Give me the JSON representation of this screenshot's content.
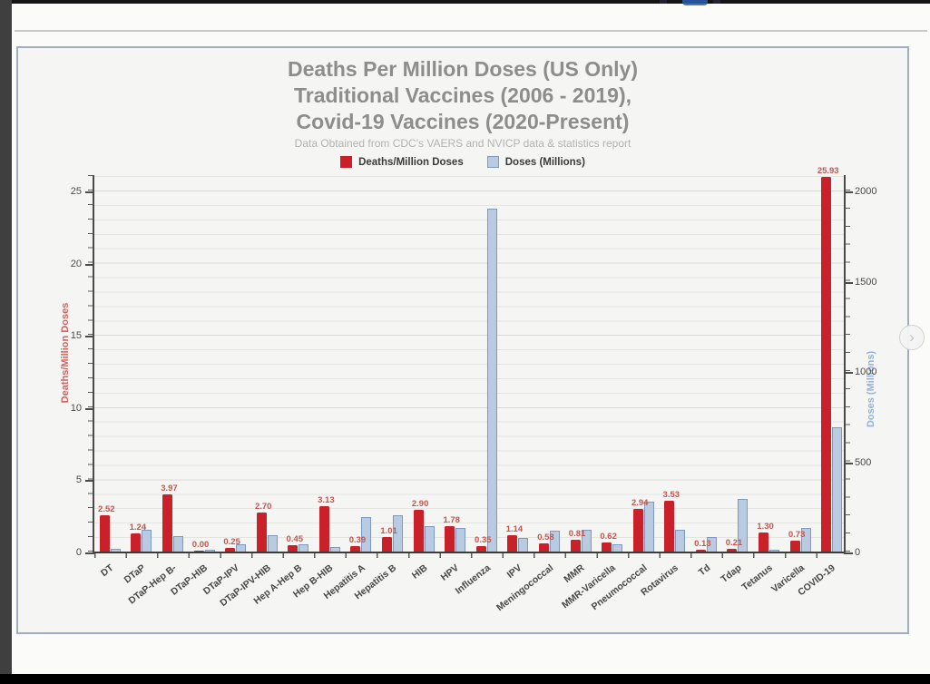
{
  "page": {
    "next_button_glyph": "›"
  },
  "colors": {
    "deaths_red": "#c9202a",
    "doses_blue_fill": "#b9cbe2",
    "doses_blue_border": "#7e99c0",
    "title_gray": "#8d8d8d",
    "left_axis_label_red": "#d4625e",
    "right_axis_label_blue": "#92b2dc"
  },
  "chart_data": {
    "type": "bar",
    "title_lines": [
      "Deaths Per Million Doses (US Only)",
      "Traditional Vaccines (2006 - 2019),",
      "Covid-19 Vaccines (2020-Present)"
    ],
    "subtitle": "Data Obtained from CDC's VAERS and NVICP data & statistics report",
    "categories": [
      "DT",
      "DTaP",
      "DTaP-Hep B-",
      "DTaP-HIB",
      "DTaP-IPV",
      "DTaP-IPV-HIB",
      "Hep A-Hep B",
      "Hep B-HIB",
      "Hepatitis A",
      "Hepatitis B",
      "HIB",
      "HPV",
      "Influenza",
      "IPV",
      "Meningococcal",
      "MMR",
      "MMR-Varicella",
      "Pneumococcal",
      "Rotavirus",
      "Td",
      "Tdap",
      "Tetanus",
      "Varicella",
      "COVID-19"
    ],
    "series": [
      {
        "name": "Deaths/Million Doses",
        "axis": "left",
        "color": "#c9202a",
        "values": [
          2.52,
          1.24,
          3.97,
          0.0,
          0.25,
          2.7,
          0.45,
          3.13,
          0.39,
          1.01,
          2.9,
          1.78,
          0.35,
          1.14,
          0.58,
          0.81,
          0.62,
          2.94,
          3.53,
          0.13,
          0.21,
          1.3,
          0.73,
          25.93
        ],
        "labels": [
          "2.52",
          "1.24",
          "3.97",
          "0.00",
          "0.25",
          "2.70",
          "0.45",
          "3.13",
          "0.39",
          "1.01",
          "2.90",
          "1.78",
          "0.35",
          "1.14",
          "0.58",
          "0.81",
          "0.62",
          "2.94",
          "3.53",
          "0.13",
          "0.21",
          "1.30",
          "0.73",
          "25.93"
        ]
      },
      {
        "name": "Doses (Millions)",
        "axis": "right",
        "color": "#b9cbe2",
        "values_millions_estimated": [
          15,
          120,
          85,
          8,
          40,
          90,
          40,
          25,
          190,
          200,
          140,
          130,
          1900,
          75,
          115,
          120,
          42,
          275,
          120,
          80,
          290,
          10,
          130,
          690
        ]
      }
    ],
    "legend": [
      {
        "label": "Deaths/Million Doses",
        "swatch": "#c9202a"
      },
      {
        "label": "Doses (Millions)",
        "swatch": "#b9cbe2"
      }
    ],
    "left_axis": {
      "label": "Deaths/Million Doses",
      "ticks": [
        0,
        5,
        10,
        15,
        20,
        25
      ],
      "max_units": 26.2
    },
    "right_axis": {
      "label": "Doses (Millions)",
      "ticks": [
        0,
        500,
        1000,
        1500,
        2000
      ],
      "max_millions": 2000,
      "millions_at_left_max_tick": 2000
    },
    "grid": true,
    "legend_position": "top"
  }
}
